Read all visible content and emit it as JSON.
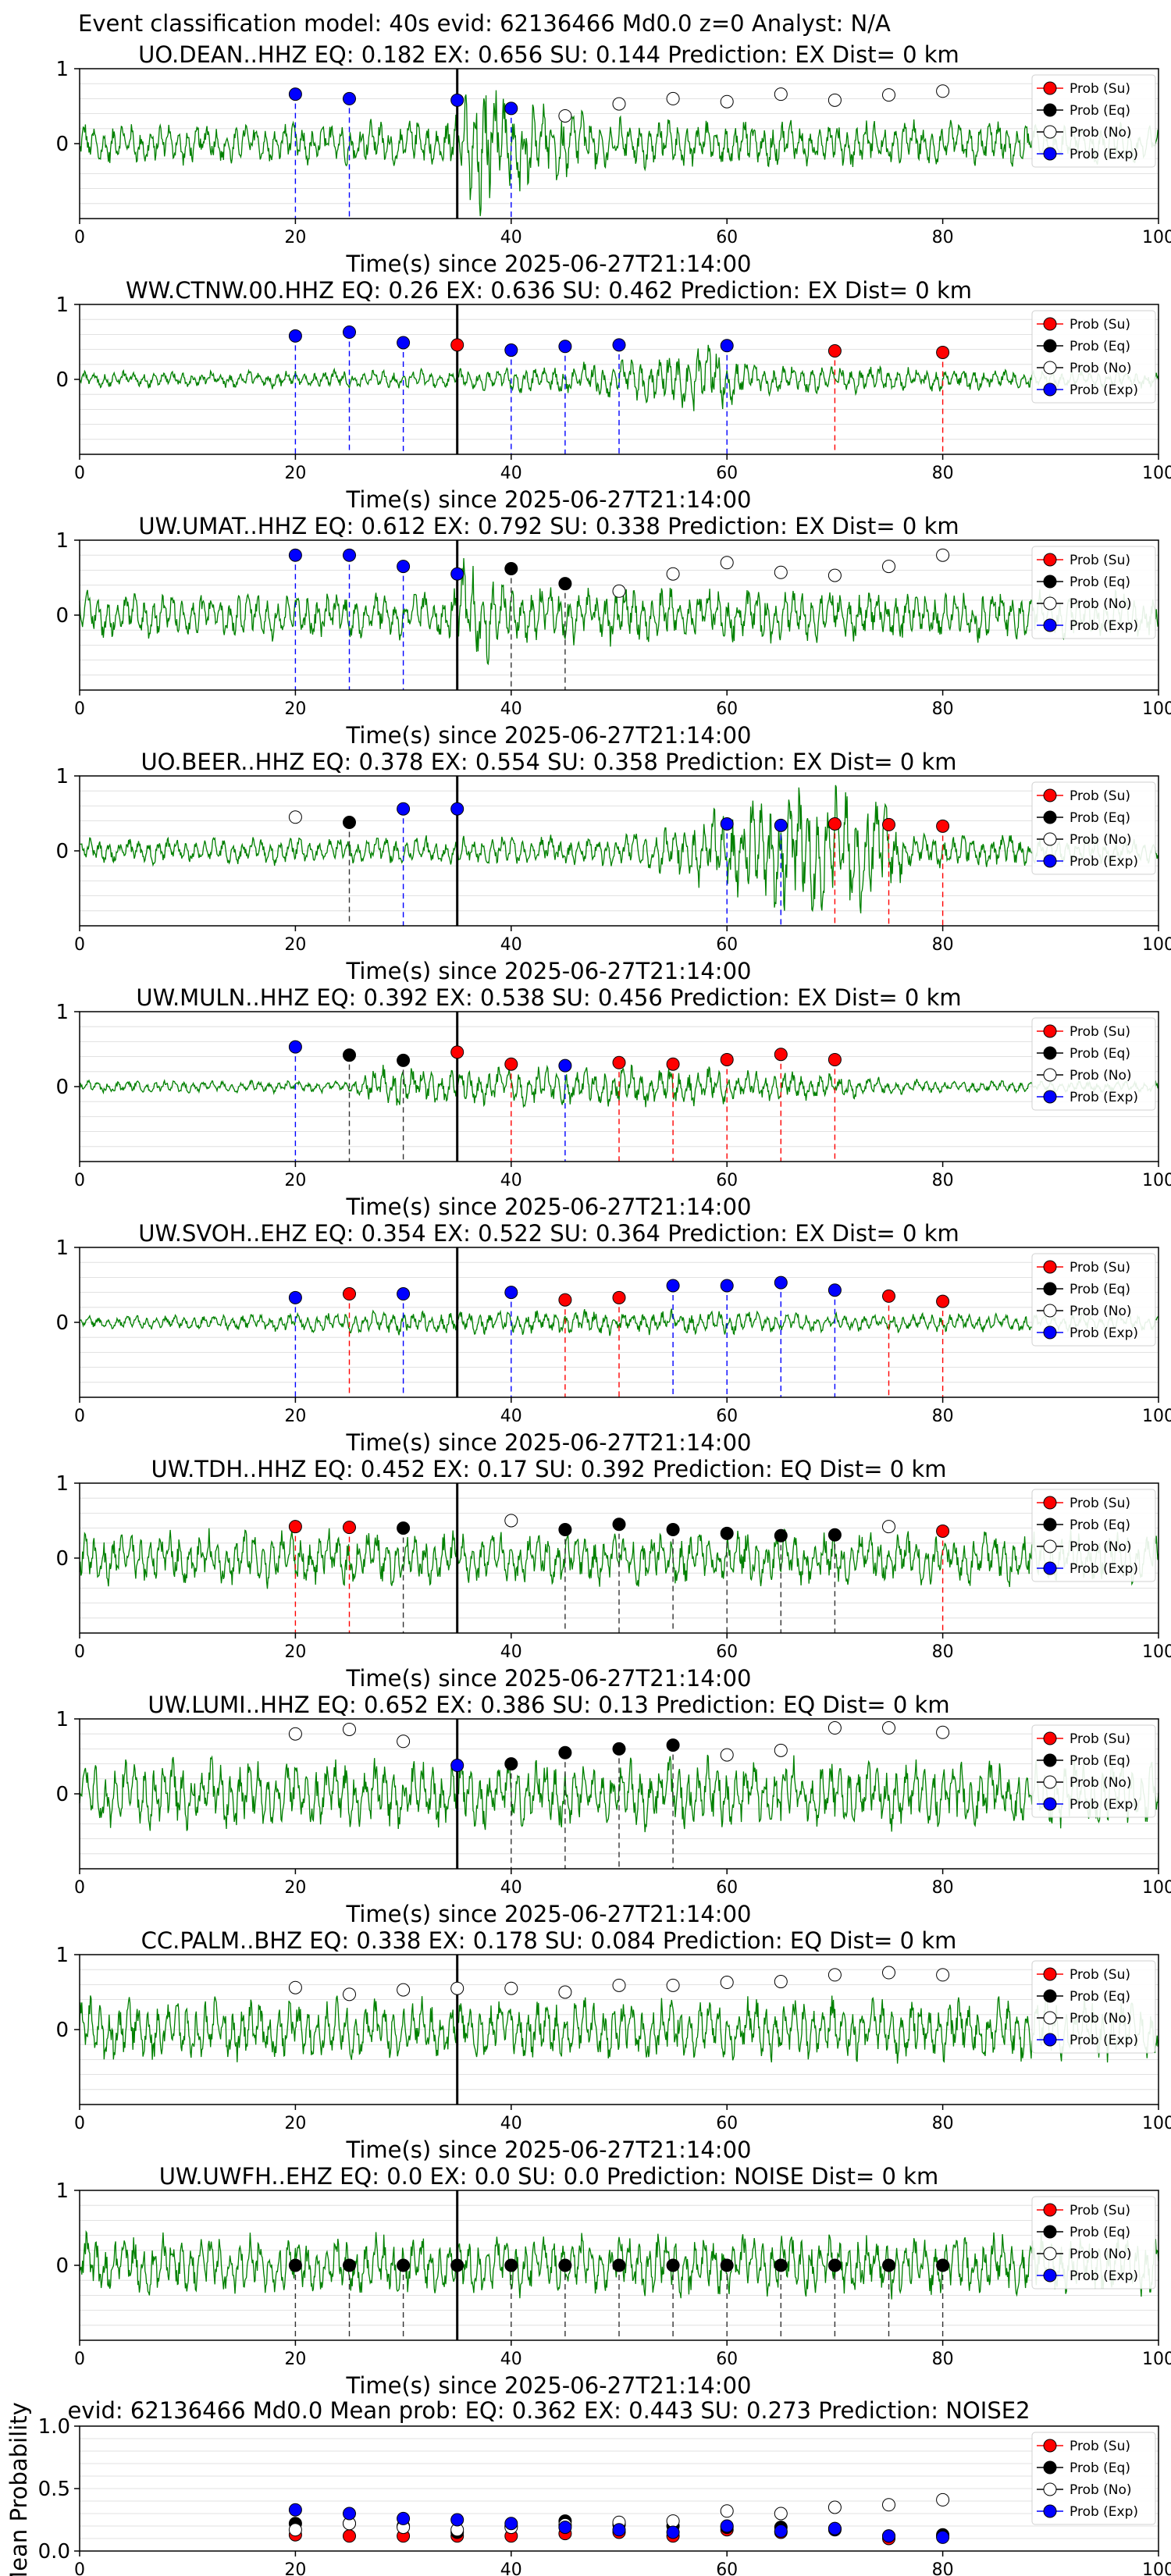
{
  "suptitle": "Event classification model: 40s evid: 62136466 Md0.0 z=0 Analyst: N/A",
  "xlabel": "Time(s) since 2025-06-27T21:14:00",
  "legend": [
    "Prob (Su)",
    "Prob (Eq)",
    "Prob (No)",
    "Prob (Exp)"
  ],
  "colors": {
    "su": "#ff0000",
    "eq": "#000000",
    "no": "#ffffff",
    "exp": "#0000ff",
    "trace": "#008000",
    "grid": "#d9d9d9",
    "onset": "#000000"
  },
  "xticks": [
    0,
    20,
    40,
    60,
    80,
    100
  ],
  "yticks_panel": [
    "0",
    "1"
  ],
  "yticks_mean": [
    "0.0",
    "0.5",
    "1.0"
  ],
  "mean_ylabel": "Mean Probability",
  "chart_data": [
    {
      "type": "line",
      "title": "UO.DEAN..HHZ   EQ: 0.182  EX: 0.656  SU: 0.144   Prediction: EX    Dist= 0 km",
      "xlim": [
        0,
        100
      ],
      "ylim": [
        -1,
        1
      ],
      "onset": 35,
      "amp": 0.65,
      "env": [
        [
          0,
          0.4
        ],
        [
          20,
          0.4
        ],
        [
          34,
          0.5
        ],
        [
          37,
          1.5
        ],
        [
          42,
          0.9
        ],
        [
          50,
          0.5
        ],
        [
          100,
          0.4
        ]
      ],
      "points": [
        {
          "x": 20,
          "y": 0.66,
          "c": "exp"
        },
        {
          "x": 25,
          "y": 0.6,
          "c": "exp"
        },
        {
          "x": 35,
          "y": 0.58,
          "c": "exp"
        },
        {
          "x": 40,
          "y": 0.47,
          "c": "exp"
        },
        {
          "x": 45,
          "y": 0.37,
          "c": "no"
        },
        {
          "x": 50,
          "y": 0.53,
          "c": "no"
        },
        {
          "x": 55,
          "y": 0.6,
          "c": "no"
        },
        {
          "x": 60,
          "y": 0.56,
          "c": "no"
        },
        {
          "x": 65,
          "y": 0.66,
          "c": "no"
        },
        {
          "x": 70,
          "y": 0.58,
          "c": "no"
        },
        {
          "x": 75,
          "y": 0.65,
          "c": "no"
        },
        {
          "x": 80,
          "y": 0.7,
          "c": "no"
        }
      ]
    },
    {
      "type": "line",
      "title": "WW.CTNW.00.HHZ   EQ: 0.26  EX: 0.636  SU: 0.462   Prediction: EX    Dist= 0 km",
      "xlim": [
        0,
        100
      ],
      "ylim": [
        -1,
        1
      ],
      "onset": 35,
      "amp": 0.1,
      "env": [
        [
          0,
          1
        ],
        [
          35,
          1.3
        ],
        [
          45,
          2
        ],
        [
          55,
          3.5
        ],
        [
          58,
          5
        ],
        [
          62,
          2
        ],
        [
          100,
          1
        ]
      ],
      "points": [
        {
          "x": 20,
          "y": 0.58,
          "c": "exp"
        },
        {
          "x": 25,
          "y": 0.63,
          "c": "exp"
        },
        {
          "x": 30,
          "y": 0.49,
          "c": "exp"
        },
        {
          "x": 35,
          "y": 0.46,
          "c": "su"
        },
        {
          "x": 40,
          "y": 0.39,
          "c": "exp"
        },
        {
          "x": 45,
          "y": 0.44,
          "c": "exp"
        },
        {
          "x": 50,
          "y": 0.46,
          "c": "exp"
        },
        {
          "x": 60,
          "y": 0.45,
          "c": "exp"
        },
        {
          "x": 70,
          "y": 0.38,
          "c": "su"
        },
        {
          "x": 80,
          "y": 0.36,
          "c": "su"
        }
      ]
    },
    {
      "type": "line",
      "title": "UW.UMAT..HHZ   EQ: 0.612  EX: 0.792  SU: 0.338   Prediction: EX    Dist= 0 km",
      "xlim": [
        0,
        100
      ],
      "ylim": [
        -1,
        1
      ],
      "onset": 35,
      "amp": 0.3,
      "env": [
        [
          0,
          1
        ],
        [
          34,
          1
        ],
        [
          36,
          2.5
        ],
        [
          40,
          1.3
        ],
        [
          100,
          1
        ]
      ],
      "points": [
        {
          "x": 20,
          "y": 0.8,
          "c": "exp"
        },
        {
          "x": 25,
          "y": 0.8,
          "c": "exp"
        },
        {
          "x": 30,
          "y": 0.65,
          "c": "exp"
        },
        {
          "x": 35,
          "y": 0.55,
          "c": "exp"
        },
        {
          "x": 40,
          "y": 0.62,
          "c": "eq"
        },
        {
          "x": 45,
          "y": 0.42,
          "c": "eq"
        },
        {
          "x": 50,
          "y": 0.32,
          "c": "no"
        },
        {
          "x": 55,
          "y": 0.55,
          "c": "no"
        },
        {
          "x": 60,
          "y": 0.7,
          "c": "no"
        },
        {
          "x": 65,
          "y": 0.57,
          "c": "no"
        },
        {
          "x": 70,
          "y": 0.53,
          "c": "no"
        },
        {
          "x": 75,
          "y": 0.65,
          "c": "no"
        },
        {
          "x": 80,
          "y": 0.8,
          "c": "no"
        }
      ]
    },
    {
      "type": "line",
      "title": "UO.BEER..HHZ   EQ: 0.378  EX: 0.554  SU: 0.358   Prediction: EX    Dist= 0 km",
      "xlim": [
        0,
        100
      ],
      "ylim": [
        -1,
        1
      ],
      "onset": 35,
      "amp": 0.2,
      "env": [
        [
          0,
          0.8
        ],
        [
          50,
          1
        ],
        [
          56,
          2
        ],
        [
          60,
          3
        ],
        [
          64,
          4
        ],
        [
          70,
          4.5
        ],
        [
          74,
          4
        ],
        [
          77,
          1.2
        ],
        [
          100,
          0.8
        ]
      ],
      "points": [
        {
          "x": 20,
          "y": 0.45,
          "c": "no"
        },
        {
          "x": 25,
          "y": 0.38,
          "c": "eq"
        },
        {
          "x": 30,
          "y": 0.56,
          "c": "exp"
        },
        {
          "x": 35,
          "y": 0.56,
          "c": "exp"
        },
        {
          "x": 60,
          "y": 0.36,
          "c": "exp"
        },
        {
          "x": 65,
          "y": 0.34,
          "c": "exp"
        },
        {
          "x": 70,
          "y": 0.36,
          "c": "su"
        },
        {
          "x": 75,
          "y": 0.35,
          "c": "su"
        },
        {
          "x": 80,
          "y": 0.33,
          "c": "su"
        }
      ]
    },
    {
      "type": "line",
      "title": "UW.MULN..HHZ   EQ: 0.392  EX: 0.538  SU: 0.456   Prediction: EX    Dist= 0 km",
      "xlim": [
        0,
        100
      ],
      "ylim": [
        -1,
        1
      ],
      "onset": 35,
      "amp": 0.08,
      "env": [
        [
          0,
          1
        ],
        [
          25,
          1
        ],
        [
          28,
          4
        ],
        [
          32,
          3
        ],
        [
          40,
          3
        ],
        [
          50,
          3.5
        ],
        [
          60,
          3
        ],
        [
          70,
          2
        ],
        [
          80,
          1
        ],
        [
          100,
          1
        ]
      ],
      "points": [
        {
          "x": 20,
          "y": 0.53,
          "c": "exp"
        },
        {
          "x": 25,
          "y": 0.42,
          "c": "eq"
        },
        {
          "x": 30,
          "y": 0.35,
          "c": "eq"
        },
        {
          "x": 35,
          "y": 0.46,
          "c": "su"
        },
        {
          "x": 40,
          "y": 0.3,
          "c": "su"
        },
        {
          "x": 45,
          "y": 0.28,
          "c": "exp"
        },
        {
          "x": 50,
          "y": 0.32,
          "c": "su"
        },
        {
          "x": 55,
          "y": 0.3,
          "c": "su"
        },
        {
          "x": 60,
          "y": 0.36,
          "c": "su"
        },
        {
          "x": 65,
          "y": 0.43,
          "c": "su"
        },
        {
          "x": 70,
          "y": 0.36,
          "c": "su"
        }
      ]
    },
    {
      "type": "line",
      "title": "UW.SVOH..EHZ   EQ: 0.354  EX: 0.522  SU: 0.364   Prediction: EX    Dist= 0 km",
      "xlim": [
        0,
        100
      ],
      "ylim": [
        -1,
        1
      ],
      "onset": 35,
      "amp": 0.08,
      "env": [
        [
          0,
          1
        ],
        [
          20,
          1.5
        ],
        [
          30,
          2
        ],
        [
          40,
          2
        ],
        [
          50,
          2
        ],
        [
          60,
          2
        ],
        [
          70,
          1.5
        ],
        [
          100,
          1.5
        ]
      ],
      "points": [
        {
          "x": 20,
          "y": 0.33,
          "c": "exp"
        },
        {
          "x": 25,
          "y": 0.38,
          "c": "su"
        },
        {
          "x": 30,
          "y": 0.38,
          "c": "exp"
        },
        {
          "x": 40,
          "y": 0.4,
          "c": "exp"
        },
        {
          "x": 45,
          "y": 0.3,
          "c": "su"
        },
        {
          "x": 50,
          "y": 0.33,
          "c": "su"
        },
        {
          "x": 55,
          "y": 0.49,
          "c": "exp"
        },
        {
          "x": 60,
          "y": 0.49,
          "c": "exp"
        },
        {
          "x": 65,
          "y": 0.53,
          "c": "exp"
        },
        {
          "x": 70,
          "y": 0.43,
          "c": "exp"
        },
        {
          "x": 75,
          "y": 0.35,
          "c": "su"
        },
        {
          "x": 80,
          "y": 0.28,
          "c": "su"
        }
      ]
    },
    {
      "type": "line",
      "title": "UW.TDH..HHZ   EQ: 0.452  EX: 0.17  SU: 0.392   Prediction: EQ    Dist= 0 km",
      "xlim": [
        0,
        100
      ],
      "ylim": [
        -1,
        1
      ],
      "onset": 35,
      "amp": 0.35,
      "env": [
        [
          0,
          1
        ],
        [
          100,
          1
        ]
      ],
      "points": [
        {
          "x": 20,
          "y": 0.42,
          "c": "su"
        },
        {
          "x": 25,
          "y": 0.41,
          "c": "su"
        },
        {
          "x": 30,
          "y": 0.4,
          "c": "eq"
        },
        {
          "x": 40,
          "y": 0.5,
          "c": "no"
        },
        {
          "x": 45,
          "y": 0.38,
          "c": "eq"
        },
        {
          "x": 50,
          "y": 0.45,
          "c": "eq"
        },
        {
          "x": 55,
          "y": 0.38,
          "c": "eq"
        },
        {
          "x": 60,
          "y": 0.33,
          "c": "eq"
        },
        {
          "x": 65,
          "y": 0.3,
          "c": "eq"
        },
        {
          "x": 70,
          "y": 0.31,
          "c": "eq"
        },
        {
          "x": 75,
          "y": 0.42,
          "c": "no"
        },
        {
          "x": 80,
          "y": 0.36,
          "c": "su"
        }
      ]
    },
    {
      "type": "line",
      "title": "UW.LUMI..HHZ   EQ: 0.652  EX: 0.386  SU: 0.13   Prediction: EQ    Dist= 0 km",
      "xlim": [
        0,
        100
      ],
      "ylim": [
        -1,
        1
      ],
      "onset": 35,
      "amp": 0.45,
      "env": [
        [
          0,
          1
        ],
        [
          100,
          1
        ]
      ],
      "points": [
        {
          "x": 20,
          "y": 0.8,
          "c": "no"
        },
        {
          "x": 25,
          "y": 0.86,
          "c": "no"
        },
        {
          "x": 30,
          "y": 0.7,
          "c": "no"
        },
        {
          "x": 35,
          "y": 0.38,
          "c": "exp"
        },
        {
          "x": 40,
          "y": 0.4,
          "c": "eq"
        },
        {
          "x": 45,
          "y": 0.55,
          "c": "eq"
        },
        {
          "x": 50,
          "y": 0.6,
          "c": "eq"
        },
        {
          "x": 55,
          "y": 0.65,
          "c": "eq"
        },
        {
          "x": 60,
          "y": 0.52,
          "c": "no"
        },
        {
          "x": 65,
          "y": 0.58,
          "c": "no"
        },
        {
          "x": 70,
          "y": 0.88,
          "c": "no"
        },
        {
          "x": 75,
          "y": 0.88,
          "c": "no"
        },
        {
          "x": 80,
          "y": 0.82,
          "c": "no"
        }
      ]
    },
    {
      "type": "line",
      "title": "CC.PALM..BHZ   EQ: 0.338  EX: 0.178  SU: 0.084   Prediction: EQ    Dist= 0 km",
      "xlim": [
        0,
        100
      ],
      "ylim": [
        -1,
        1
      ],
      "onset": 35,
      "amp": 0.4,
      "env": [
        [
          0,
          1
        ],
        [
          100,
          1
        ]
      ],
      "points": [
        {
          "x": 20,
          "y": 0.56,
          "c": "no"
        },
        {
          "x": 25,
          "y": 0.47,
          "c": "no"
        },
        {
          "x": 30,
          "y": 0.53,
          "c": "no"
        },
        {
          "x": 35,
          "y": 0.55,
          "c": "no"
        },
        {
          "x": 40,
          "y": 0.55,
          "c": "no"
        },
        {
          "x": 45,
          "y": 0.5,
          "c": "no"
        },
        {
          "x": 50,
          "y": 0.59,
          "c": "no"
        },
        {
          "x": 55,
          "y": 0.59,
          "c": "no"
        },
        {
          "x": 60,
          "y": 0.63,
          "c": "no"
        },
        {
          "x": 65,
          "y": 0.64,
          "c": "no"
        },
        {
          "x": 70,
          "y": 0.73,
          "c": "no"
        },
        {
          "x": 75,
          "y": 0.76,
          "c": "no"
        },
        {
          "x": 80,
          "y": 0.73,
          "c": "no"
        }
      ]
    },
    {
      "type": "line",
      "title": "UW.UWFH..EHZ   EQ: 0.0  EX: 0.0  SU: 0.0   Prediction: NOISE    Dist= 0 km",
      "xlim": [
        0,
        100
      ],
      "ylim": [
        -1,
        1
      ],
      "onset": 35,
      "amp": 0.4,
      "env": [
        [
          0,
          1
        ],
        [
          100,
          1
        ]
      ],
      "points": [
        {
          "x": 20,
          "y": 0.0,
          "c": "eq"
        },
        {
          "x": 25,
          "y": 0.0,
          "c": "eq"
        },
        {
          "x": 30,
          "y": 0.0,
          "c": "eq"
        },
        {
          "x": 35,
          "y": 0.0,
          "c": "eq"
        },
        {
          "x": 40,
          "y": 0.0,
          "c": "eq"
        },
        {
          "x": 45,
          "y": 0.0,
          "c": "eq"
        },
        {
          "x": 50,
          "y": 0.0,
          "c": "eq"
        },
        {
          "x": 55,
          "y": 0.0,
          "c": "eq"
        },
        {
          "x": 60,
          "y": 0.0,
          "c": "eq"
        },
        {
          "x": 65,
          "y": 0.0,
          "c": "eq"
        },
        {
          "x": 70,
          "y": 0.0,
          "c": "eq"
        },
        {
          "x": 75,
          "y": 0.0,
          "c": "eq"
        },
        {
          "x": 80,
          "y": 0.0,
          "c": "eq"
        }
      ]
    },
    {
      "type": "scatter",
      "title": "evid: 62136466  Md0.0   Mean prob:   EQ: 0.362  EX: 0.443  SU: 0.273   Prediction: NOISE2",
      "ylabel": "Mean Probability",
      "xlim": [
        0,
        100
      ],
      "ylim": [
        0,
        1
      ],
      "x": [
        20,
        25,
        30,
        35,
        40,
        45,
        50,
        55,
        60,
        65,
        70,
        75,
        80
      ],
      "series": [
        {
          "name": "Prob (Su)",
          "c": "su",
          "values": [
            0.13,
            0.12,
            0.12,
            0.12,
            0.12,
            0.14,
            0.15,
            0.12,
            0.17,
            0.15,
            0.18,
            0.1,
            0.12
          ]
        },
        {
          "name": "Prob (Eq)",
          "c": "eq",
          "values": [
            0.22,
            0.22,
            0.2,
            0.15,
            0.2,
            0.24,
            0.21,
            0.2,
            0.19,
            0.19,
            0.17,
            0.12,
            0.13
          ]
        },
        {
          "name": "Prob (No)",
          "c": "no",
          "values": [
            0.17,
            0.22,
            0.19,
            0.17,
            0.19,
            0.21,
            0.23,
            0.24,
            0.32,
            0.3,
            0.35,
            0.37,
            0.41
          ]
        },
        {
          "name": "Prob (Exp)",
          "c": "exp",
          "values": [
            0.33,
            0.3,
            0.26,
            0.25,
            0.22,
            0.19,
            0.17,
            0.15,
            0.2,
            0.16,
            0.18,
            0.12,
            0.11
          ]
        }
      ]
    }
  ]
}
